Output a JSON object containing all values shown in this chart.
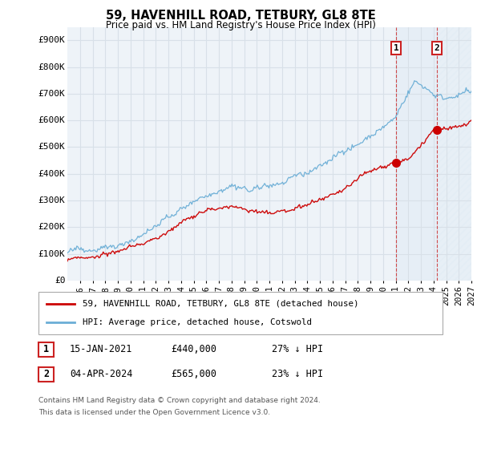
{
  "title": "59, HAVENHILL ROAD, TETBURY, GL8 8TE",
  "subtitle": "Price paid vs. HM Land Registry's House Price Index (HPI)",
  "yticks": [
    0,
    100000,
    200000,
    300000,
    400000,
    500000,
    600000,
    700000,
    800000,
    900000
  ],
  "ytick_labels": [
    "£0",
    "£100K",
    "£200K",
    "£300K",
    "£400K",
    "£500K",
    "£600K",
    "£700K",
    "£800K",
    "£900K"
  ],
  "xlim": [
    1995,
    2027
  ],
  "ylim": [
    0,
    950000
  ],
  "hpi_color": "#6baed6",
  "price_color": "#cc0000",
  "sale1_date_label": "15-JAN-2021",
  "sale1_price": 440000,
  "sale1_pct": "27%",
  "sale2_date_label": "04-APR-2024",
  "sale2_price": 565000,
  "sale2_pct": "23%",
  "sale1_year": 2021.04,
  "sale2_year": 2024.27,
  "legend_line1": "59, HAVENHILL ROAD, TETBURY, GL8 8TE (detached house)",
  "legend_line2": "HPI: Average price, detached house, Cotswold",
  "footnote1": "Contains HM Land Registry data © Crown copyright and database right 2024.",
  "footnote2": "This data is licensed under the Open Government Licence v3.0.",
  "bg_color": "#ffffff",
  "plot_bg_color": "#eef3f8",
  "grid_color": "#d8e0e8",
  "shade_color": "#ddeaf5",
  "hatch_color": "#c8d8e8",
  "ann_box_color": "#cc2222",
  "vline_color": "#cc2222"
}
